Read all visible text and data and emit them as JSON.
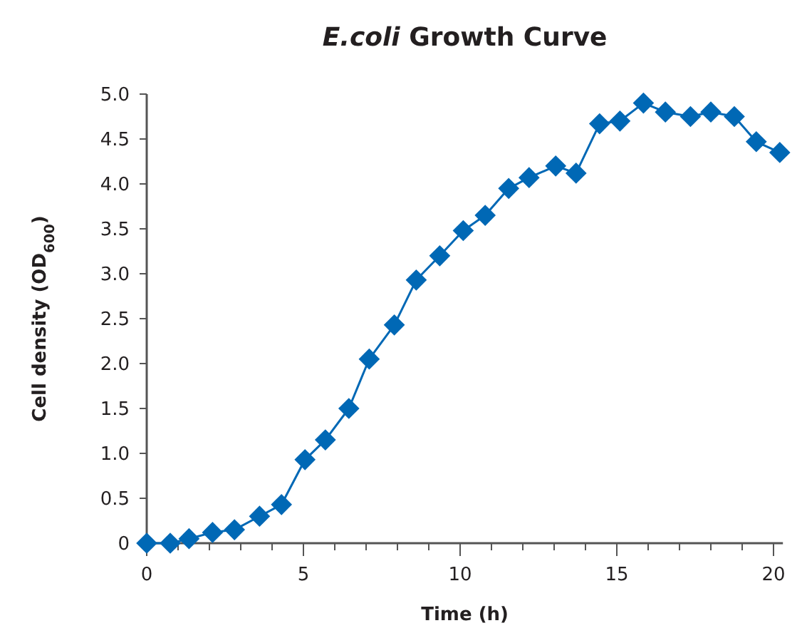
{
  "chart_data": {
    "type": "line",
    "title": "E.coli Growth Curve",
    "xlabel": "Time (h)",
    "ylabel": "Cell density (OD$_{600}$)",
    "marker": "diamond",
    "line_style": "solid",
    "grid": false,
    "xlim": [
      0,
      20.3
    ],
    "ylim": [
      0,
      5
    ],
    "xticks": [
      0,
      {
        "value": 1,
        "label": null
      },
      {
        "value": 2,
        "label": null
      },
      {
        "value": 3,
        "label": null
      },
      {
        "value": 4,
        "label": null
      },
      5,
      {
        "value": 6,
        "label": null
      },
      {
        "value": 7,
        "label": null
      },
      {
        "value": 8,
        "label": null
      },
      {
        "value": 9,
        "label": null
      },
      10,
      {
        "value": 11,
        "label": null
      },
      {
        "value": 12,
        "label": null
      },
      {
        "value": 13,
        "label": null
      },
      {
        "value": 14,
        "label": null
      },
      15,
      {
        "value": 16,
        "label": null
      },
      {
        "value": 17,
        "label": null
      },
      {
        "value": 18,
        "label": null
      },
      {
        "value": 19,
        "label": null
      },
      20
    ],
    "yticks": [
      0,
      {
        "value": 0.5,
        "label": "0.5"
      },
      {
        "value": 1,
        "label": "1.0"
      },
      {
        "value": 1.5,
        "label": "1.5"
      },
      {
        "value": 2,
        "label": "2.0"
      },
      {
        "value": 2.5,
        "label": "2.5"
      },
      {
        "value": 3,
        "label": "3.0"
      },
      {
        "value": 3.5,
        "label": "3.5"
      },
      {
        "value": 4,
        "label": "4.0"
      },
      {
        "value": 4.5,
        "label": "4.5"
      },
      {
        "value": 5,
        "label": "5.0"
      }
    ],
    "series": [
      {
        "color": "#0068b5",
        "x": [
          0,
          0.75,
          1.35,
          2.1,
          2.8,
          3.6,
          4.3,
          5.05,
          5.7,
          6.45,
          7.1,
          7.9,
          8.6,
          9.35,
          10.1,
          10.8,
          11.55,
          12.2,
          13.05,
          13.7,
          14.45,
          15.1,
          15.85,
          16.55,
          17.35,
          18.0,
          18.75,
          19.45,
          20.2
        ],
        "values": [
          0,
          0,
          0.05,
          0.12,
          0.15,
          0.3,
          0.43,
          0.93,
          1.15,
          1.5,
          2.05,
          2.43,
          2.93,
          3.2,
          3.48,
          3.65,
          3.95,
          4.07,
          4.2,
          4.12,
          4.67,
          4.7,
          4.9,
          4.8,
          4.75,
          4.8,
          4.75,
          4.47,
          4.35
        ]
      }
    ]
  }
}
